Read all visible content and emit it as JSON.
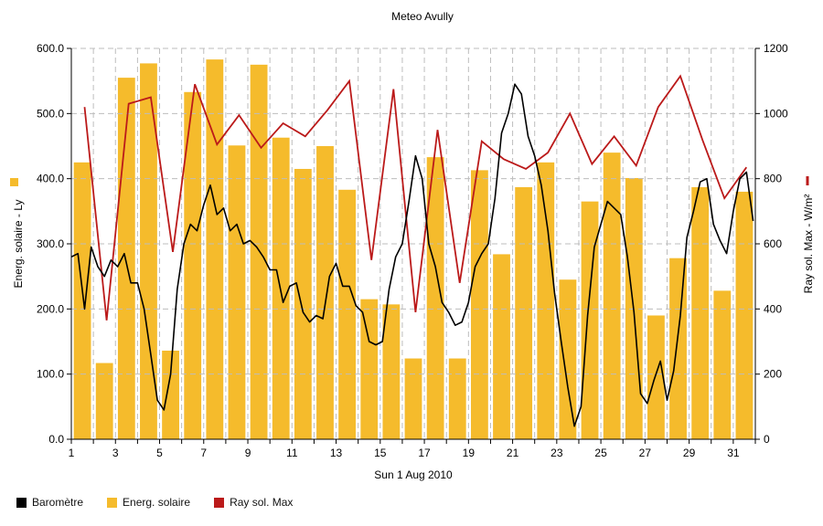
{
  "chart_data": {
    "type": "bar+line",
    "title": "Meteo  Avully",
    "xlabel": "Sun 1 Aug 2010",
    "ylabel_left": "Energ. solaire - Ly",
    "ylabel_right": "Ray sol. Max - W/m²",
    "ylim_left": [
      0,
      600
    ],
    "ylim_right": [
      0,
      1200
    ],
    "xlim": [
      1,
      32
    ],
    "x_ticks": [
      1,
      3,
      5,
      7,
      9,
      11,
      13,
      15,
      17,
      19,
      21,
      23,
      25,
      27,
      29,
      31
    ],
    "y_left_ticks": [
      "0.0",
      "100.0",
      "200.0",
      "300.0",
      "400.0",
      "500.0",
      "600.0"
    ],
    "y_right_ticks": [
      "0",
      "200",
      "400",
      "600",
      "800",
      "1000",
      "1200"
    ],
    "grid": true,
    "legend_position": "bottom-left",
    "colors": {
      "barometre": "#000000",
      "energie": "#f5bb2c",
      "ray": "#bb1a1a",
      "grid": "#bdbdbd"
    },
    "series": [
      {
        "name": "Energ. solaire",
        "kind": "bar",
        "axis": "left",
        "x": [
          1.5,
          2.5,
          3.5,
          4.5,
          5.5,
          6.5,
          7.5,
          8.5,
          9.5,
          10.5,
          11.5,
          12.5,
          13.5,
          14.5,
          15.5,
          16.5,
          17.5,
          18.5,
          19.5,
          20.5,
          21.5,
          22.5,
          23.5,
          24.5,
          25.5,
          26.5,
          27.5,
          28.5,
          29.5,
          30.5,
          31.5
        ],
        "values": [
          425,
          117,
          555,
          577,
          136,
          533,
          583,
          451,
          575,
          463,
          415,
          450,
          383,
          215,
          207,
          124,
          433,
          124,
          413,
          284,
          387,
          425,
          245,
          365,
          440,
          401,
          190,
          278,
          387,
          228,
          380
        ]
      },
      {
        "name": "Ray sol. Max",
        "kind": "line",
        "axis": "right",
        "x": [
          1.6,
          2.6,
          3.6,
          4.6,
          5.6,
          6.6,
          7.6,
          8.6,
          9.6,
          10.6,
          11.6,
          12.6,
          13.6,
          14.6,
          15.6,
          16.6,
          17.6,
          18.6,
          19.6,
          20.6,
          21.6,
          22.6,
          23.6,
          24.6,
          25.6,
          26.6,
          27.6,
          28.6,
          29.6,
          30.6,
          31.6
        ],
        "values": [
          1020,
          365,
          1030,
          1050,
          575,
          1090,
          905,
          995,
          895,
          970,
          930,
          1010,
          1100,
          550,
          1075,
          390,
          950,
          480,
          915,
          860,
          830,
          880,
          1000,
          845,
          930,
          840,
          1020,
          1115,
          920,
          740,
          835
        ]
      },
      {
        "name": "Baromètre",
        "kind": "line",
        "axis": "left",
        "x": [
          1.0,
          1.3,
          1.6,
          1.9,
          2.2,
          2.5,
          2.8,
          3.1,
          3.4,
          3.7,
          4.0,
          4.3,
          4.6,
          4.9,
          5.2,
          5.5,
          5.8,
          6.1,
          6.4,
          6.7,
          7.0,
          7.3,
          7.6,
          7.9,
          8.2,
          8.5,
          8.8,
          9.1,
          9.4,
          9.7,
          10.0,
          10.3,
          10.6,
          10.9,
          11.2,
          11.5,
          11.8,
          12.1,
          12.4,
          12.7,
          13.0,
          13.3,
          13.6,
          13.9,
          14.2,
          14.5,
          14.8,
          15.1,
          15.4,
          15.7,
          16.0,
          16.3,
          16.6,
          16.9,
          17.2,
          17.5,
          17.8,
          18.1,
          18.4,
          18.7,
          19.0,
          19.3,
          19.6,
          19.9,
          20.2,
          20.5,
          20.8,
          21.1,
          21.4,
          21.7,
          22.0,
          22.3,
          22.6,
          22.9,
          23.2,
          23.5,
          23.8,
          24.1,
          24.4,
          24.7,
          25.0,
          25.3,
          25.6,
          25.9,
          26.2,
          26.5,
          26.8,
          27.1,
          27.4,
          27.7,
          28.0,
          28.3,
          28.6,
          28.9,
          29.2,
          29.5,
          29.8,
          30.1,
          30.4,
          30.7,
          31.0,
          31.3,
          31.6,
          31.9
        ],
        "values": [
          280,
          285,
          200,
          295,
          265,
          250,
          275,
          265,
          285,
          240,
          240,
          200,
          130,
          60,
          45,
          100,
          230,
          300,
          330,
          320,
          360,
          390,
          345,
          355,
          320,
          330,
          300,
          305,
          295,
          280,
          260,
          260,
          210,
          235,
          240,
          195,
          180,
          190,
          185,
          250,
          270,
          235,
          235,
          205,
          195,
          150,
          145,
          150,
          230,
          280,
          300,
          365,
          435,
          400,
          300,
          265,
          210,
          195,
          175,
          180,
          210,
          265,
          285,
          300,
          370,
          470,
          500,
          545,
          530,
          465,
          435,
          390,
          320,
          225,
          150,
          80,
          20,
          50,
          190,
          295,
          330,
          365,
          355,
          345,
          280,
          195,
          70,
          55,
          90,
          120,
          60,
          105,
          190,
          310,
          350,
          395,
          400,
          330,
          305,
          285,
          350,
          400,
          410,
          335
        ]
      }
    ]
  }
}
